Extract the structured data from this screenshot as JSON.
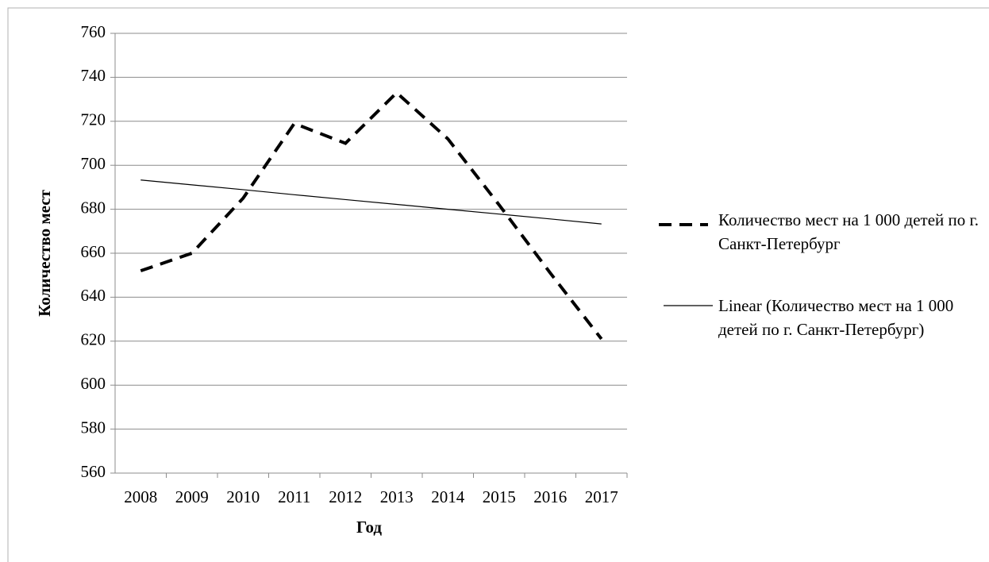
{
  "chart_data": {
    "type": "line",
    "xlabel": "Год",
    "ylabel": "Количество мест",
    "categories": [
      "2008",
      "2009",
      "2010",
      "2011",
      "2012",
      "2013",
      "2014",
      "2015",
      "2016",
      "2017"
    ],
    "series": [
      {
        "name": "Количество мест на 1 000 детей по г. Санкт-Петербург",
        "color": "#000000",
        "dashed": true,
        "values": [
          652,
          660,
          685,
          719,
          710,
          733,
          712,
          682,
          651,
          621
        ]
      },
      {
        "name": "Linear (Количество мест на 1 000 детей по г. Санкт-Петербург)",
        "color": "#000000",
        "dashed": false,
        "values": [
          693.3,
          691.1,
          688.9,
          686.6,
          684.4,
          682.2,
          680.0,
          677.8,
          675.6,
          673.3
        ]
      }
    ],
    "ylim": [
      560,
      760
    ],
    "yticks": [
      560,
      580,
      600,
      620,
      640,
      660,
      680,
      700,
      720,
      740,
      760
    ],
    "grid": true,
    "legend": "right"
  }
}
